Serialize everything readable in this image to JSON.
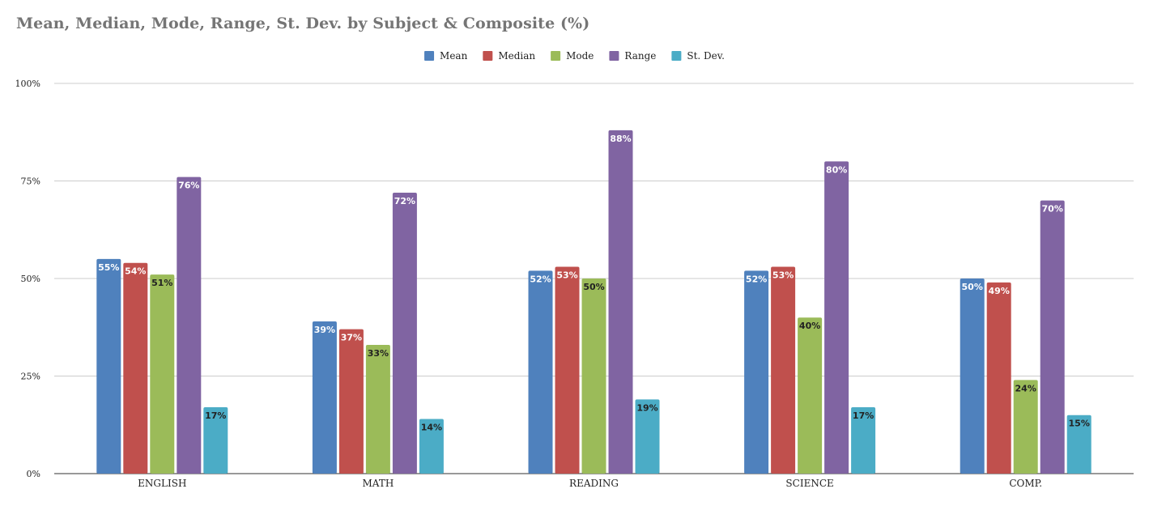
{
  "title": "Mean, Median, Mode, Range, St. Dev. by Subject & Composite (%)",
  "chart_data": {
    "type": "bar",
    "title": "Mean, Median, Mode, Range, St. Dev. by Subject & Composite (%)",
    "categories": [
      "ENGLISH",
      "MATH",
      "READING",
      "SCIENCE",
      "COMP."
    ],
    "series": [
      {
        "name": "Mean",
        "color": "#4f81bd",
        "label_color": "#ffffff",
        "values": [
          55,
          39,
          52,
          52,
          50
        ]
      },
      {
        "name": "Median",
        "color": "#c0504d",
        "label_color": "#ffffff",
        "values": [
          54,
          37,
          53,
          53,
          49
        ]
      },
      {
        "name": "Mode",
        "color": "#9bbb59",
        "label_color": "#222222",
        "values": [
          51,
          33,
          50,
          40,
          24
        ]
      },
      {
        "name": "Range",
        "color": "#8064a2",
        "label_color": "#ffffff",
        "values": [
          76,
          72,
          88,
          80,
          70
        ]
      },
      {
        "name": "St. Dev.",
        "color": "#4bacc6",
        "label_color": "#222222",
        "values": [
          17,
          14,
          19,
          17,
          15
        ]
      }
    ],
    "data_labels": [
      [
        "55%",
        "39%",
        "52%",
        "52%",
        "50%"
      ],
      [
        "54%",
        "37%",
        "53%",
        "53%",
        "49%"
      ],
      [
        "51%",
        "33%",
        "50%",
        "40%",
        "24%"
      ],
      [
        "76%",
        "72%",
        "88%",
        "80%",
        "70%"
      ],
      [
        "17%",
        "14%",
        "19%",
        "17%",
        "15%"
      ]
    ],
    "ylim": [
      0,
      100
    ],
    "yticks": [
      0,
      25,
      50,
      75,
      100
    ],
    "ytick_labels": [
      "0%",
      "25%",
      "50%",
      "75%",
      "100%"
    ],
    "grid": true,
    "legend": "top-center",
    "xlabel": "",
    "ylabel": ""
  }
}
